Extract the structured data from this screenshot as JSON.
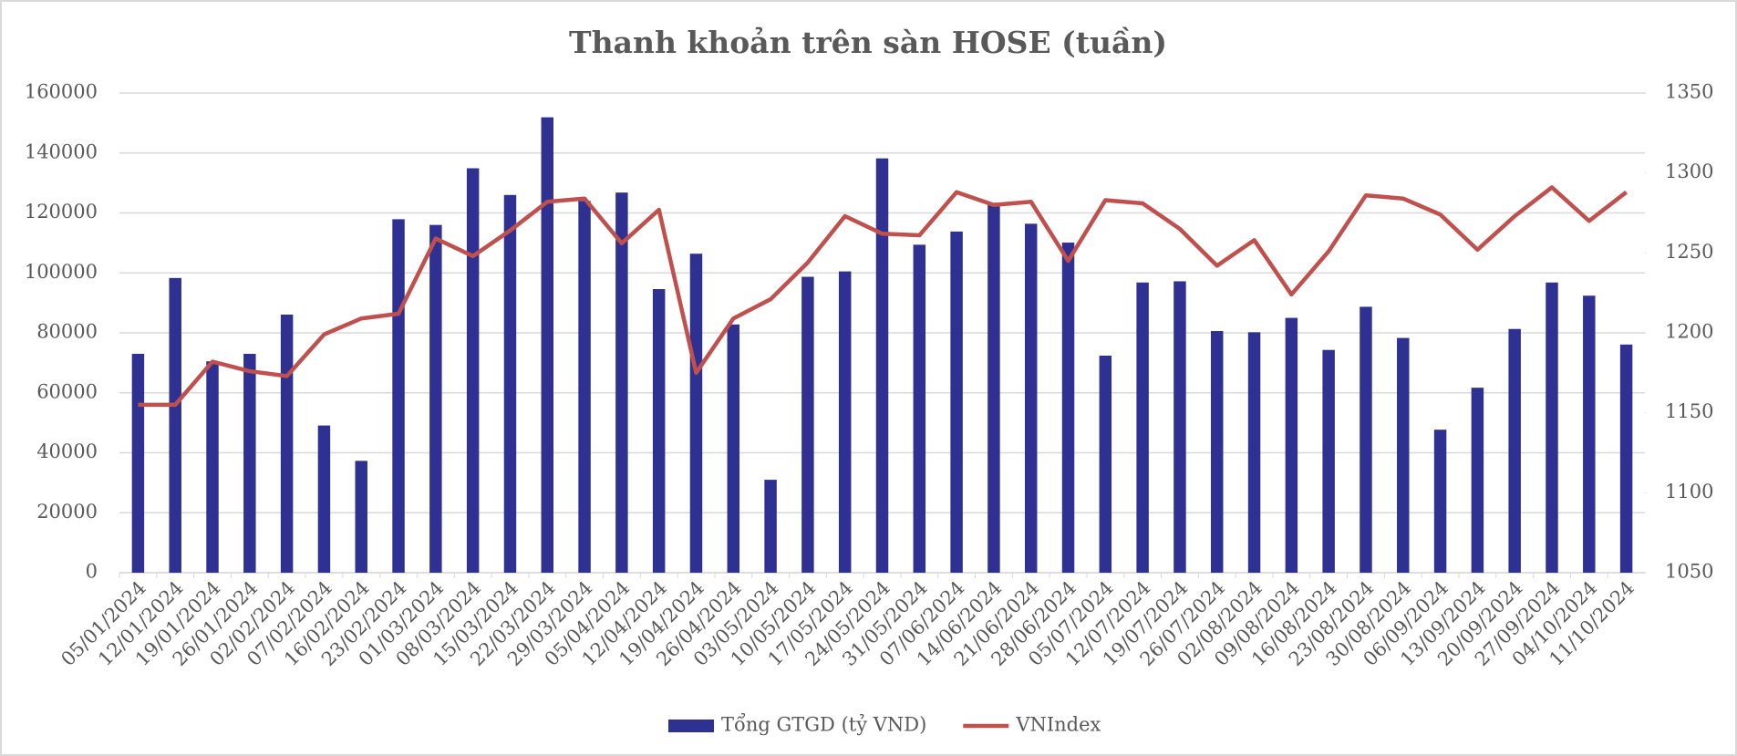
{
  "chart_data": {
    "type": "bar_line",
    "title": "Thanh khoản trên sàn HOSE (tuần)",
    "categories": [
      "05/01/2024",
      "12/01/2024",
      "19/01/2024",
      "26/01/2024",
      "02/02/2024",
      "07/02/2024",
      "16/02/2024",
      "23/02/2024",
      "01/03/2024",
      "08/03/2024",
      "15/03/2024",
      "22/03/2024",
      "29/03/2024",
      "05/04/2024",
      "12/04/2024",
      "19/04/2024",
      "26/04/2024",
      "03/05/2024",
      "10/05/2024",
      "17/05/2024",
      "24/05/2024",
      "31/05/2024",
      "07/06/2024",
      "14/06/2024",
      "21/06/2024",
      "28/06/2024",
      "05/07/2024",
      "12/07/2024",
      "19/07/2024",
      "26/07/2024",
      "02/08/2024",
      "09/08/2024",
      "16/08/2024",
      "23/08/2024",
      "30/08/2024",
      "06/09/2024",
      "13/09/2024",
      "20/09/2024",
      "27/09/2024",
      "04/10/2024",
      "11/10/2024"
    ],
    "series": [
      {
        "name": "Tổng GTGD (tỷ VND)",
        "type": "bar",
        "color": "#2e3192",
        "values": [
          73000,
          98300,
          70500,
          73000,
          86100,
          49100,
          37300,
          117900,
          116000,
          134900,
          126000,
          151900,
          124000,
          126800,
          94600,
          106400,
          82800,
          31000,
          98700,
          100500,
          138200,
          109400,
          113800,
          123400,
          116400,
          110100,
          72400,
          96800,
          97200,
          80600,
          80200,
          85000,
          74300,
          88700,
          78300,
          47700,
          61700,
          81300,
          96800,
          92400,
          76100
        ]
      },
      {
        "name": "VNIndex",
        "type": "line",
        "axis": "y2",
        "color": "#c0504d",
        "values": [
          1155,
          1155,
          1182,
          1176,
          1173,
          1199,
          1209,
          1212,
          1259,
          1248,
          1264,
          1282,
          1284,
          1256,
          1277,
          1175,
          1209,
          1221,
          1244,
          1273,
          1262,
          1261,
          1288,
          1280,
          1282,
          1245,
          1283,
          1281,
          1265,
          1242,
          1258,
          1224,
          1251,
          1286,
          1284,
          1274,
          1252,
          1273,
          1291,
          1270,
          1288
        ]
      }
    ],
    "ylim": [
      0,
      160000
    ],
    "yticks": [
      0,
      20000,
      40000,
      60000,
      80000,
      100000,
      120000,
      140000,
      160000
    ],
    "y2lim": [
      1050,
      1350
    ],
    "y2ticks": [
      1050,
      1100,
      1150,
      1200,
      1250,
      1300,
      1350
    ],
    "grid": true,
    "legend": "bottom"
  }
}
